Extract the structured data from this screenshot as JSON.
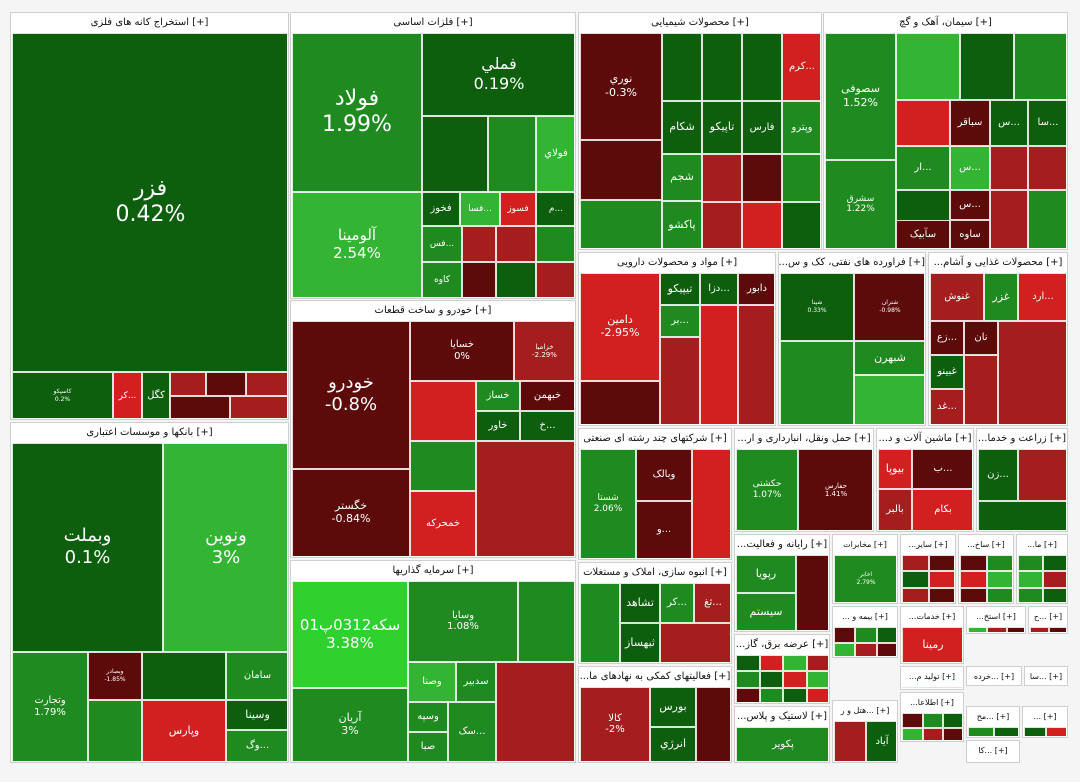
{
  "chart_data": {
    "type": "treemap",
    "title": "",
    "colors": {
      "strong_red": "#5c0a0a",
      "red": "#a51d1d",
      "light_red": "#d21f1f",
      "dark_green": "#0d5e0d",
      "green": "#1f8a1f",
      "light_green": "#33b533",
      "bright_green": "#2fd12f"
    },
    "sectors": [
      {
        "name": "[+] استخراج کانه های فلزی",
        "items": [
          {
            "symbol": "فزر",
            "change": "0.42%"
          },
          {
            "symbol": "کاسپکو",
            "change": "0.2%"
          },
          {
            "symbol": "...کر",
            "change": ""
          },
          {
            "symbol": "کگل",
            "change": ""
          }
        ]
      },
      {
        "name": "[+] فلزات اساسی",
        "items": [
          {
            "symbol": "فولاد",
            "change": "1.99%"
          },
          {
            "symbol": "فملي",
            "change": "0.19%"
          },
          {
            "symbol": "آلومینا",
            "change": "2.54%"
          },
          {
            "symbol": "فخوز",
            "change": ""
          },
          {
            "symbol": "...فسا",
            "change": ""
          },
          {
            "symbol": "فسوز",
            "change": ""
          },
          {
            "symbol": "...م",
            "change": ""
          },
          {
            "symbol": "فولاي",
            "change": ""
          },
          {
            "symbol": "...فس",
            "change": ""
          },
          {
            "symbol": "کاوه",
            "change": ""
          }
        ]
      },
      {
        "name": "[+] محصولات شیمیایی",
        "items": [
          {
            "symbol": "نوري",
            "change": "-0.3%"
          },
          {
            "symbol": "شکام",
            "change": ""
          },
          {
            "symbol": "تاپیکو",
            "change": ""
          },
          {
            "symbol": "فارس",
            "change": ""
          },
          {
            "symbol": "وپترو",
            "change": ""
          },
          {
            "symbol": "...کرم",
            "change": ""
          },
          {
            "symbol": "شجم",
            "change": ""
          },
          {
            "symbol": "پاکشو",
            "change": ""
          }
        ]
      },
      {
        "name": "[+] سیمان، آهک و گچ",
        "items": [
          {
            "symbol": "سصوفی",
            "change": "1.52%"
          },
          {
            "symbol": "سشرق",
            "change": "1.22%"
          },
          {
            "symbol": "سباقر",
            "change": ""
          },
          {
            "symbol": "...س",
            "change": ""
          },
          {
            "symbol": "...سا",
            "change": ""
          },
          {
            "symbol": "...ار",
            "change": ""
          },
          {
            "symbol": "...س",
            "change": ""
          },
          {
            "symbol": "...س",
            "change": ""
          },
          {
            "symbol": "ساوه",
            "change": ""
          },
          {
            "symbol": "سآبیک",
            "change": ""
          }
        ]
      },
      {
        "name": "[+] بانکها و موسسات اعتباری",
        "items": [
          {
            "symbol": "وبملت",
            "change": "0.1%"
          },
          {
            "symbol": "ونوین",
            "change": "3%"
          },
          {
            "symbol": "وتجارت",
            "change": "1.79%"
          },
          {
            "symbol": "وبصادر",
            "change": "-1.85%"
          },
          {
            "symbol": "سامان",
            "change": ""
          },
          {
            "symbol": "وسینا",
            "change": ""
          },
          {
            "symbol": "وپارس",
            "change": ""
          },
          {
            "symbol": "...وگ",
            "change": ""
          }
        ]
      },
      {
        "name": "[+] خودرو و ساخت قطعات",
        "items": [
          {
            "symbol": "خودرو",
            "change": "-0.8%"
          },
          {
            "symbol": "خسایا",
            "change": "0%"
          },
          {
            "symbol": "خزامیا",
            "change": "-2.29%"
          },
          {
            "symbol": "خساز",
            "change": ""
          },
          {
            "symbol": "خبهمن",
            "change": ""
          },
          {
            "symbol": "خاور",
            "change": ""
          },
          {
            "symbol": "...خ",
            "change": ""
          },
          {
            "symbol": "خگستر",
            "change": "-0.84%"
          },
          {
            "symbol": "خمحرکه",
            "change": ""
          }
        ]
      },
      {
        "name": "[+] مواد و محصولات دارویی",
        "items": [
          {
            "symbol": "دامین",
            "change": "-2.95%"
          },
          {
            "symbol": "تیپیکو",
            "change": ""
          },
          {
            "symbol": "...دزا",
            "change": ""
          },
          {
            "symbol": "دابور",
            "change": ""
          },
          {
            "symbol": "...بر",
            "change": ""
          }
        ]
      },
      {
        "name": "[+] فراورده های نفتی، کک و س...",
        "items": [
          {
            "symbol": "شپنا",
            "change": "0.33%"
          },
          {
            "symbol": "شتران",
            "change": "-0.98%"
          },
          {
            "symbol": "شبهرن",
            "change": ""
          }
        ]
      },
      {
        "name": "[+] محصولات غذایی و آشام...",
        "items": [
          {
            "symbol": "غنوش",
            "change": ""
          },
          {
            "symbol": "غزر",
            "change": ""
          },
          {
            "symbol": "...ارد",
            "change": ""
          },
          {
            "symbol": "...زع",
            "change": ""
          },
          {
            "symbol": "نان",
            "change": ""
          },
          {
            "symbol": "غبینو",
            "change": ""
          },
          {
            "symbol": "...غد",
            "change": ""
          }
        ]
      },
      {
        "name": "[+] شرکتهای چند رشته ای صنعتی",
        "items": [
          {
            "symbol": "شستا",
            "change": "2.06%"
          },
          {
            "symbol": "وبالک",
            "change": ""
          },
          {
            "symbol": "...و",
            "change": ""
          }
        ]
      },
      {
        "name": "[+] حمل ونقل، انبارداری و ار...",
        "items": [
          {
            "symbol": "حکشتی",
            "change": "1.07%"
          },
          {
            "symbol": "حفارس",
            "change": "1.41%"
          }
        ]
      },
      {
        "name": "[+] ماشین آلات و د...",
        "items": [
          {
            "symbol": "بیوپا",
            "change": ""
          },
          {
            "symbol": "...ب",
            "change": ""
          },
          {
            "symbol": "بالبر",
            "change": ""
          },
          {
            "symbol": "بکام",
            "change": ""
          }
        ]
      },
      {
        "name": "[+] زراعت و خدما...",
        "items": [
          {
            "symbol": "...زن",
            "change": ""
          }
        ]
      },
      {
        "name": "[+] سرمایه گذاریها",
        "items": [
          {
            "symbol": "سکه0312پ01",
            "change": "3.38%"
          },
          {
            "symbol": "وسایا",
            "change": "1.08%"
          },
          {
            "symbol": "وصنا",
            "change": ""
          },
          {
            "symbol": "سدبیر",
            "change": ""
          },
          {
            "symbol": "وسپه",
            "change": ""
          },
          {
            "symbol": "آریان",
            "change": "3%"
          },
          {
            "symbol": "صبا",
            "change": ""
          },
          {
            "symbol": "...سک",
            "change": ""
          }
        ]
      },
      {
        "name": "[+] انبوه سازی، املاک و مستغلات",
        "items": [
          {
            "symbol": "تشاهد",
            "change": ""
          },
          {
            "symbol": "...کر",
            "change": ""
          },
          {
            "symbol": "...ثغ",
            "change": ""
          },
          {
            "symbol": "ثبهساز",
            "change": ""
          }
        ]
      },
      {
        "name": "[+] فعالیتهای کمکی به نهادهای ما...",
        "items": [
          {
            "symbol": "کالا",
            "change": "-2%"
          },
          {
            "symbol": "بورس",
            "change": ""
          },
          {
            "symbol": "انرژي",
            "change": ""
          }
        ]
      },
      {
        "name": "[+] رایانه و فعالیت...",
        "items": [
          {
            "symbol": "رپویا",
            "change": ""
          },
          {
            "symbol": "سیستم",
            "change": ""
          }
        ]
      },
      {
        "name": "[+] مخابرات",
        "items": [
          {
            "symbol": "اخابر",
            "change": "2.79%"
          }
        ]
      },
      {
        "name": "[+] ساير...",
        "items": []
      },
      {
        "name": "[+] ساخ...",
        "items": []
      },
      {
        "name": "[+] ما...",
        "items": []
      },
      {
        "name": "[+] عرضه برق، گاز...",
        "items": []
      },
      {
        "name": "[+] خدمات...",
        "items": [
          {
            "symbol": "رمینا",
            "change": ""
          }
        ]
      },
      {
        "name": "[+] استخ...",
        "items": []
      },
      {
        "name": "[+] ...ح",
        "items": []
      },
      {
        "name": "[+] بیمه و ...",
        "items": []
      },
      {
        "name": "[+] تولید م...",
        "items": []
      },
      {
        "name": "[+] ...خرده",
        "items": []
      },
      {
        "name": "[+] ...سا",
        "items": []
      },
      {
        "name": "[+] ...هتل و ر",
        "items": [
          {
            "symbol": "آیاد",
            "change": ""
          }
        ]
      },
      {
        "name": "[+] لاستیک و پلاس...",
        "items": [
          {
            "symbol": "پکویر",
            "change": ""
          }
        ]
      },
      {
        "name": "[+] اطلاعا...",
        "items": []
      },
      {
        "name": "[+] ...مح",
        "items": []
      },
      {
        "name": "[+] ...",
        "items": []
      },
      {
        "name": "[+] ...کا",
        "items": []
      }
    ]
  }
}
